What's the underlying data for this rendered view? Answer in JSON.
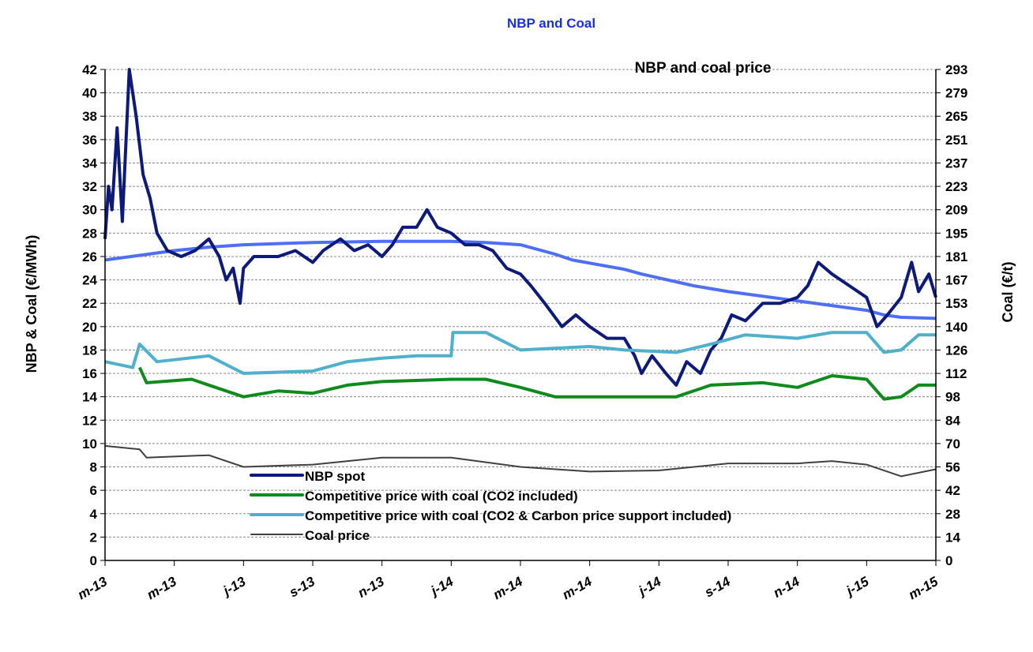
{
  "page_title": "NBP and Coal",
  "chart_data": {
    "type": "line",
    "title": "NBP and coal price",
    "ylabel": "NBP & Coal (€/MWh)",
    "y2label": "Coal (€/t)",
    "ylim": [
      0,
      42
    ],
    "y2lim": [
      0,
      293
    ],
    "x_unit": "months since Mar-2013",
    "xlim": [
      0,
      24
    ],
    "x_tick_labels": [
      "m-13",
      "m-13",
      "j-13",
      "s-13",
      "n-13",
      "j-14",
      "m-14",
      "m-14",
      "j-14",
      "s-14",
      "n-14",
      "j-15",
      "m-15"
    ],
    "x_tick_positions": [
      0,
      2,
      4,
      6,
      8,
      10,
      12,
      14,
      16,
      18,
      20,
      22,
      24
    ],
    "y_ticks": [
      0,
      2,
      4,
      6,
      8,
      10,
      12,
      14,
      16,
      18,
      20,
      22,
      24,
      26,
      28,
      30,
      32,
      34,
      36,
      38,
      40,
      42
    ],
    "y2_tick_labels": [
      "0",
      "14",
      "28",
      "42",
      "56",
      "70",
      "84",
      "98",
      "112",
      "126",
      "140",
      "153",
      "167",
      "181",
      "195",
      "209",
      "223",
      "237",
      "251",
      "265",
      "279",
      "293"
    ],
    "grid": true,
    "legend_position": "bottom-left",
    "series": [
      {
        "name": "",
        "color": "#4f6ff2",
        "width": 4,
        "in_legend": false,
        "x": [
          0,
          1,
          2,
          3,
          4,
          6,
          8,
          10,
          11,
          12,
          13,
          13.5,
          15,
          15.5,
          17,
          18,
          20,
          22,
          22.5,
          23,
          24
        ],
        "y": [
          25.7,
          26.1,
          26.5,
          26.8,
          27,
          27.2,
          27.3,
          27.3,
          27.2,
          27,
          26.2,
          25.7,
          24.9,
          24.5,
          23.5,
          23,
          22.2,
          21.4,
          21,
          20.8,
          20.7
        ]
      },
      {
        "name": "NBP spot",
        "color": "#0d1a7a",
        "width": 4,
        "in_legend": true,
        "x": [
          0,
          0.1,
          0.2,
          0.35,
          0.5,
          0.7,
          0.9,
          1.1,
          1.3,
          1.5,
          1.8,
          2.2,
          2.6,
          3,
          3.3,
          3.5,
          3.7,
          3.9,
          4,
          4.3,
          5,
          5.5,
          6,
          6.3,
          6.8,
          7.2,
          7.6,
          8,
          8.3,
          8.6,
          9,
          9.3,
          9.6,
          10,
          10.4,
          10.8,
          11.2,
          11.6,
          12,
          12.3,
          12.7,
          13.2,
          13.6,
          14,
          14.5,
          15,
          15.3,
          15.5,
          15.8,
          16.2,
          16.5,
          16.8,
          17.2,
          17.5,
          17.8,
          18.1,
          18.5,
          19,
          19.5,
          20,
          20.3,
          20.6,
          21,
          21.5,
          22,
          22.3,
          22.6,
          23,
          23.3,
          23.5,
          23.8,
          24
        ],
        "y": [
          27.5,
          32,
          30,
          37,
          29,
          42,
          38,
          33,
          31,
          28,
          26.5,
          26,
          26.5,
          27.5,
          26,
          24,
          25,
          22,
          25,
          26,
          26,
          26.5,
          25.5,
          26.5,
          27.5,
          26.5,
          27,
          26,
          27,
          28.5,
          28.5,
          30,
          28.5,
          28,
          27,
          27,
          26.5,
          25,
          24.5,
          23.5,
          22,
          20,
          21,
          20,
          19,
          19,
          17.5,
          16,
          17.5,
          16,
          15,
          17,
          16,
          18,
          19,
          21,
          20.5,
          22,
          22,
          22.5,
          23.5,
          25.5,
          24.5,
          23.5,
          22.5,
          20,
          21,
          22.5,
          25.5,
          23,
          24.5,
          22.5
        ]
      },
      {
        "name": "Competitive price with coal (CO2 included)",
        "color": "#0f8a1c",
        "width": 4,
        "in_legend": true,
        "x": [
          1,
          1.2,
          2.5,
          4,
          5,
          6,
          7,
          8,
          10,
          11,
          12,
          13,
          15,
          16.5,
          17.5,
          19,
          20,
          21,
          22,
          22.5,
          23,
          23.5,
          24
        ],
        "y": [
          16.5,
          15.2,
          15.5,
          14,
          14.5,
          14.3,
          15,
          15.3,
          15.5,
          15.5,
          14.8,
          14,
          14,
          14,
          15,
          15.2,
          14.8,
          15.8,
          15.5,
          13.8,
          14,
          15,
          15
        ]
      },
      {
        "name": "Competitive price with coal (CO2 & Carbon price support included)",
        "color": "#4fb0cc",
        "width": 4,
        "in_legend": true,
        "x": [
          0,
          0.8,
          1,
          1.5,
          3,
          4,
          6,
          7,
          8,
          9,
          10,
          10.05,
          11,
          12,
          14,
          15,
          16.5,
          17.5,
          18.5,
          20,
          21,
          22,
          22.5,
          23,
          23.5,
          24
        ],
        "y": [
          17,
          16.5,
          18.5,
          17,
          17.5,
          16,
          16.2,
          17,
          17.3,
          17.5,
          17.5,
          19.5,
          19.5,
          18,
          18.3,
          18,
          17.8,
          18.5,
          19.3,
          19,
          19.5,
          19.5,
          17.8,
          18,
          19.3,
          19.3
        ]
      },
      {
        "name": "Coal price",
        "color": "#404040",
        "width": 2,
        "in_legend": true,
        "x": [
          0,
          1,
          1.2,
          3,
          4,
          6,
          8,
          10,
          12,
          14,
          16,
          18,
          20,
          21,
          22,
          23,
          24
        ],
        "y": [
          9.8,
          9.5,
          8.8,
          9,
          8,
          8.2,
          8.8,
          8.8,
          8,
          7.6,
          7.7,
          8.3,
          8.3,
          8.5,
          8.2,
          7.2,
          7.8
        ]
      }
    ]
  }
}
